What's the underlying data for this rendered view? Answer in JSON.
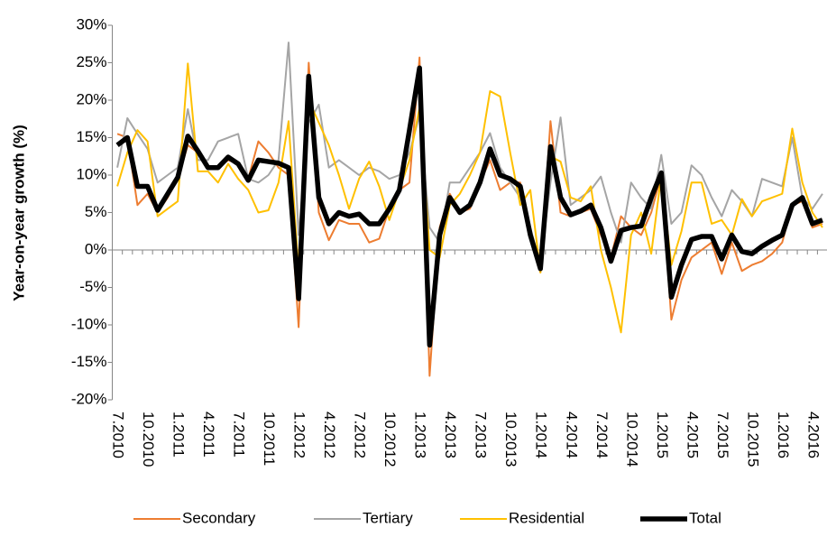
{
  "chart_data": {
    "type": "line",
    "y_label": "Year-on-year growth (%)",
    "categories": [
      "7.2010",
      null,
      null,
      "10.2010",
      null,
      null,
      "1.2011",
      null,
      null,
      "4.2011",
      null,
      null,
      "7.2011",
      null,
      null,
      "10.2011",
      null,
      null,
      "1.2012",
      null,
      null,
      "4.2012",
      null,
      null,
      "7.2012",
      null,
      null,
      "10.2012",
      null,
      null,
      "1.2013",
      null,
      null,
      "4.2013",
      null,
      null,
      "7.2013",
      null,
      null,
      "10.2013",
      null,
      null,
      "1.2014",
      null,
      null,
      "4.2014",
      null,
      null,
      "7.2014",
      null,
      null,
      "10.2014",
      null,
      null,
      "1.2015",
      null,
      null,
      "4.2015",
      null,
      null,
      "7.2015",
      null,
      null,
      "10.2015",
      null,
      null,
      "1.2016",
      null,
      null,
      "4.2016",
      null
    ],
    "series": [
      {
        "name": "Secondary",
        "color": "#ed7d31",
        "width": 2,
        "values": [
          15.5,
          15,
          6,
          7.5,
          5,
          7,
          9.5,
          14,
          13,
          11,
          11,
          12,
          11.5,
          9.5,
          14.5,
          13,
          11,
          10,
          -10.3,
          25,
          5,
          1.3,
          4,
          3.5,
          3.5,
          1,
          1.5,
          5.5,
          8,
          9,
          25.7,
          -16.8,
          3,
          7.5,
          5,
          5.5,
          9,
          12,
          8,
          9,
          9,
          2,
          -3,
          17.2,
          5,
          4.5,
          5,
          5.5,
          2,
          -1,
          4.5,
          3,
          2,
          5,
          10,
          -9.3,
          -4,
          -1,
          0,
          1,
          -3.2,
          1,
          -2.8,
          -2,
          -1.5,
          -0.5,
          1,
          6,
          6.5,
          3,
          3.5
        ]
      },
      {
        "name": "Tertiary",
        "color": "#a5a5a5",
        "width": 2,
        "values": [
          11,
          17.6,
          15.5,
          13.5,
          9,
          10,
          11,
          18.8,
          12,
          12,
          14.5,
          15,
          15.5,
          9.5,
          9,
          10,
          12,
          27.7,
          2,
          17,
          19.4,
          11,
          12,
          11,
          10,
          11,
          10.5,
          9.5,
          10,
          13,
          18,
          3,
          1,
          9,
          9,
          11,
          13,
          15.6,
          11,
          9,
          7,
          3,
          -2,
          9,
          17.7,
          6,
          7,
          8,
          9.8,
          5,
          1,
          9,
          7,
          5.5,
          12.7,
          3.5,
          5,
          11.3,
          10,
          7,
          4.5,
          8,
          6.5,
          4.5,
          9.5,
          9,
          8.5,
          15,
          7,
          5.5,
          7.5
        ]
      },
      {
        "name": "Residential",
        "color": "#ffc000",
        "width": 2,
        "values": [
          8.5,
          13,
          16,
          14.5,
          4.5,
          5.5,
          6.5,
          24.9,
          10.5,
          10.5,
          9,
          11.5,
          9.5,
          8,
          5,
          5.3,
          9,
          17.2,
          -3,
          20,
          17,
          14,
          10,
          5.5,
          9.5,
          11.8,
          8.5,
          4,
          8,
          12,
          19,
          0,
          -1,
          6,
          7.5,
          10,
          13,
          21.2,
          20.5,
          13,
          6,
          8,
          -3,
          12.5,
          11.8,
          7,
          6.5,
          8.5,
          0,
          -5,
          -11,
          2,
          5,
          -0.5,
          10,
          -2,
          2.5,
          9,
          9,
          3.5,
          4,
          2,
          6.8,
          4.5,
          6.5,
          7,
          7.5,
          16.2,
          9,
          5,
          3
        ]
      },
      {
        "name": "Total",
        "color": "#000000",
        "width": 5.5,
        "values": [
          14,
          15,
          8.5,
          8.5,
          5.3,
          7.5,
          9.7,
          15.2,
          13.2,
          11,
          11,
          12.4,
          11.5,
          9.3,
          12,
          11.8,
          11.6,
          11,
          -6.5,
          23.2,
          7,
          3.5,
          5,
          4.5,
          4.8,
          3.5,
          3.5,
          5.5,
          8,
          16,
          24.3,
          -12.7,
          2,
          7,
          5,
          6,
          9,
          13.5,
          10,
          9.5,
          8.5,
          2,
          -2.5,
          13.8,
          7,
          4.7,
          5.2,
          6,
          3,
          -1.5,
          2.6,
          3,
          3.2,
          7,
          10.3,
          -6.3,
          -2,
          1.4,
          1.8,
          1.8,
          -1.2,
          2,
          -0.2,
          -0.5,
          0.5,
          1.3,
          2,
          6,
          7,
          3.5,
          4
        ]
      }
    ],
    "ylim": [
      -20,
      30
    ],
    "yticks": [
      {
        "value": -20,
        "label": "-20%"
      },
      {
        "value": -15,
        "label": "-15%"
      },
      {
        "value": -10,
        "label": "-10%"
      },
      {
        "value": -5,
        "label": "-5%"
      },
      {
        "value": 0,
        "label": "0%"
      },
      {
        "value": 5,
        "label": "5%"
      },
      {
        "value": 10,
        "label": "10%"
      },
      {
        "value": 15,
        "label": "15%"
      },
      {
        "value": 20,
        "label": "20%"
      },
      {
        "value": 25,
        "label": "25%"
      },
      {
        "value": 30,
        "label": "30%"
      }
    ],
    "legend": "bottom"
  }
}
